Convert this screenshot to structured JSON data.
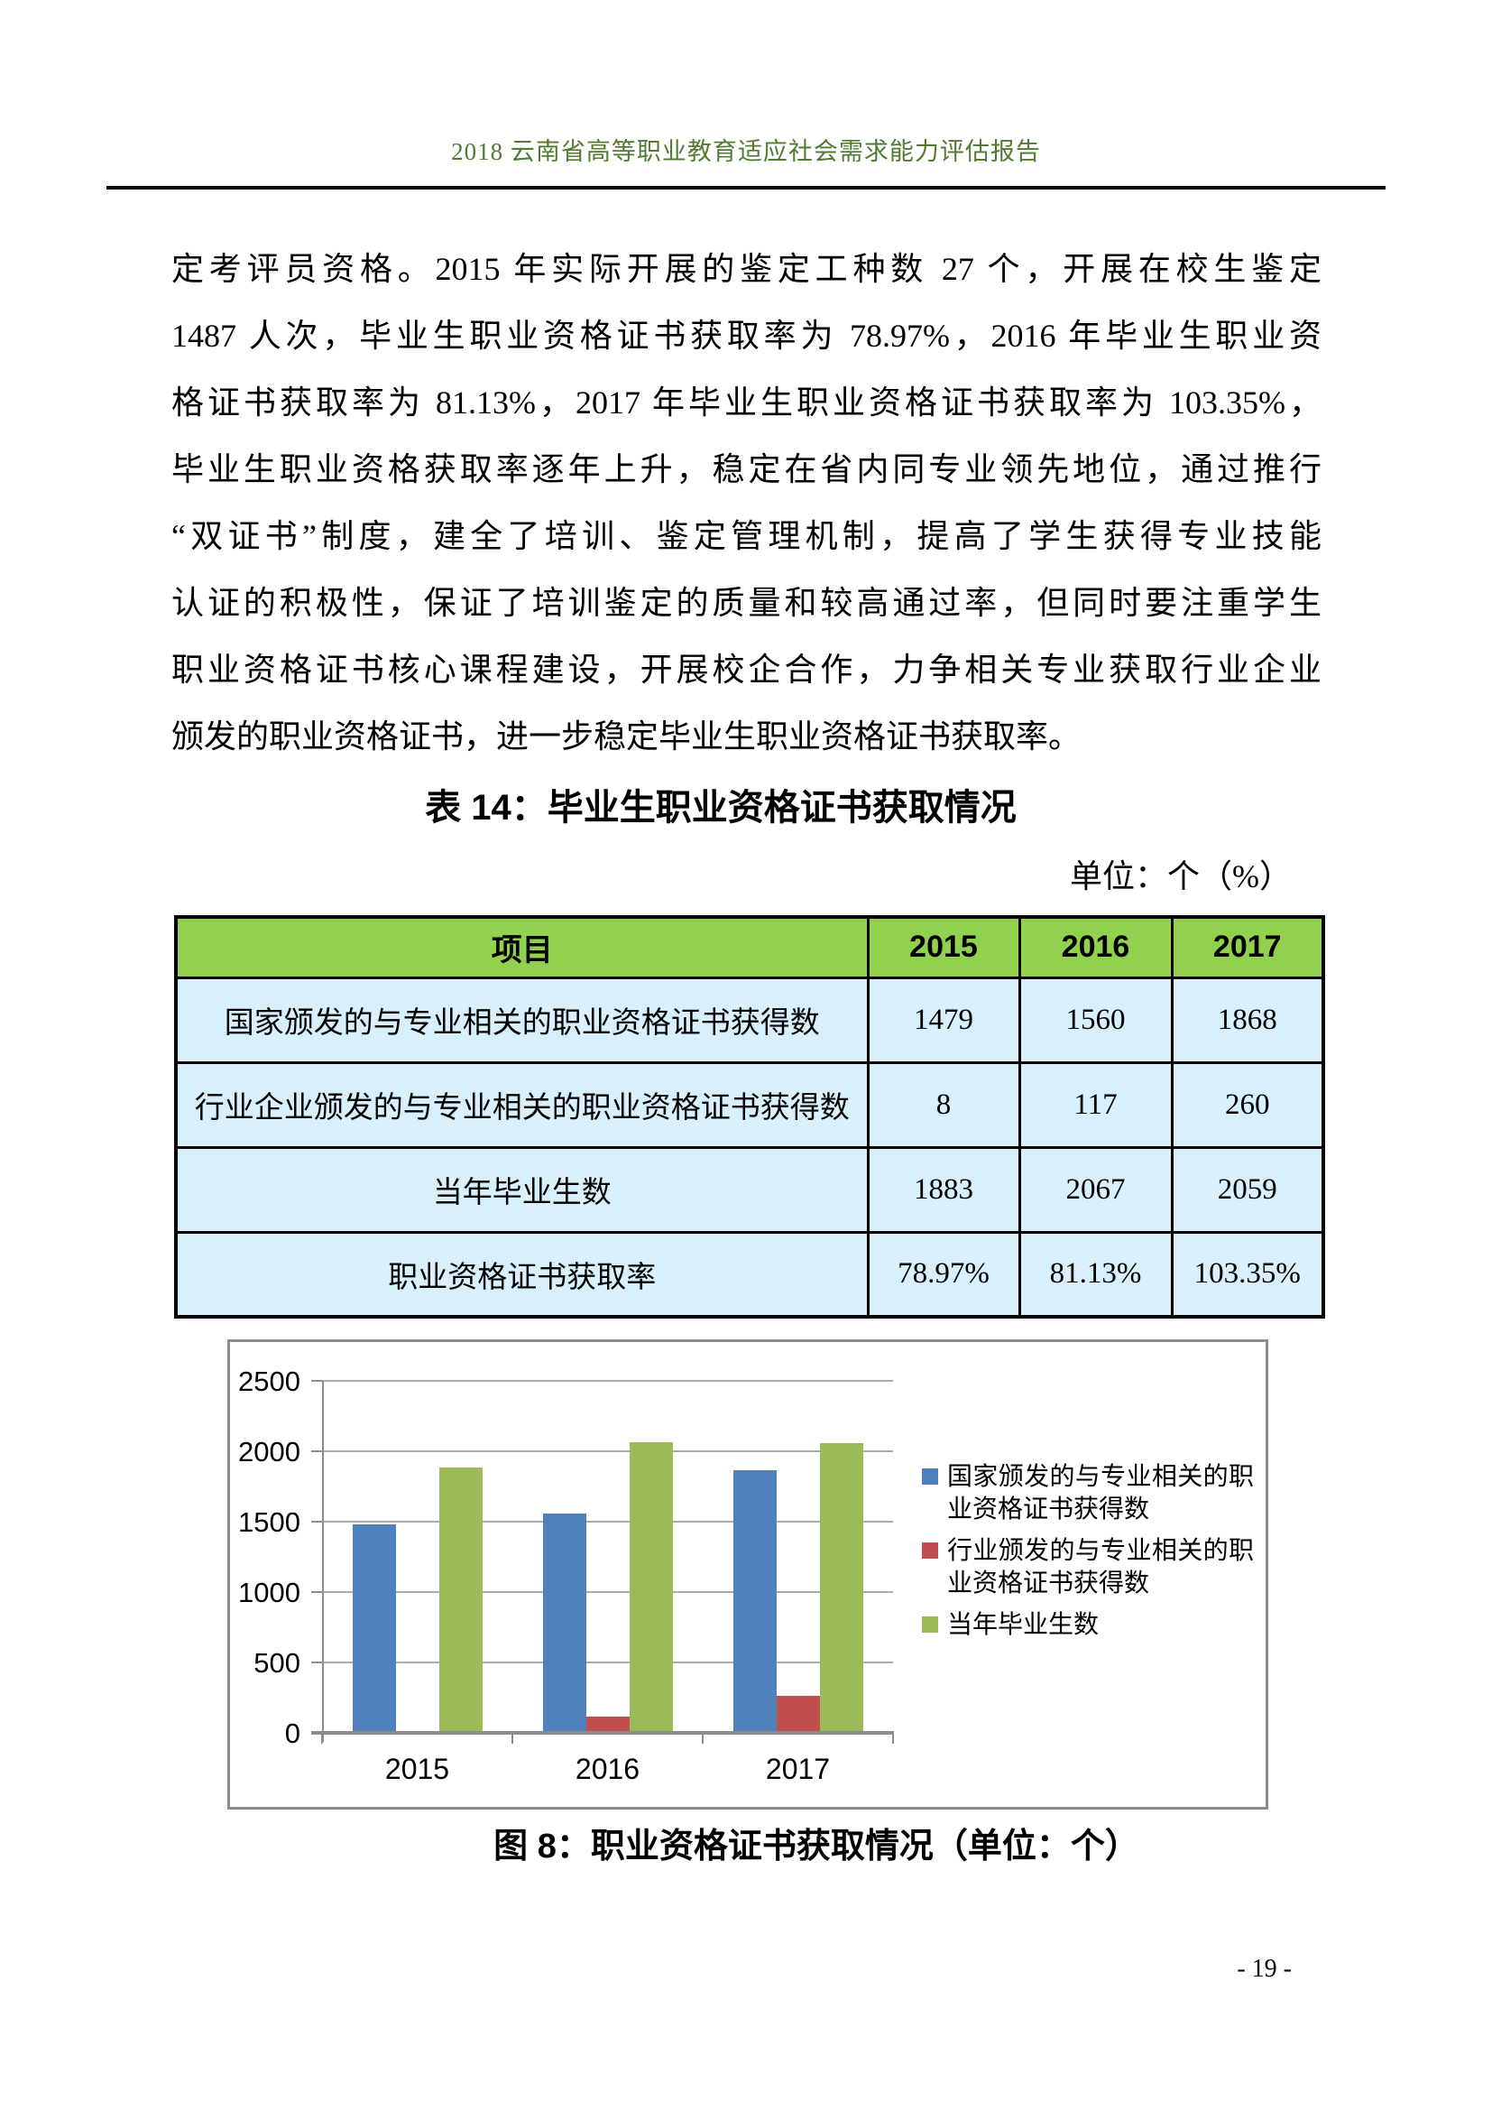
{
  "header": {
    "title": "2018 云南省高等职业教育适应社会需求能力评估报告"
  },
  "paragraph": {
    "lines": [
      "定考评员资格。2015 年实际开展的鉴定工种数 27 个，开展在校生鉴定",
      "1487 人次，毕业生职业资格证书获取率为 78.97%，2016 年毕业生职业资",
      "格证书获取率为 81.13%，2017 年毕业生职业资格证书获取率为 103.35%，",
      "毕业生职业资格获取率逐年上升，稳定在省内同专业领先地位，通过推行",
      "“双证书”制度，建全了培训、鉴定管理机制，提高了学生获得专业技能",
      "认证的积极性，保证了培训鉴定的质量和较高通过率，但同时要注重学生",
      "职业资格证书核心课程建设，开展校企合作，力争相关专业获取行业企业",
      "颁发的职业资格证书，进一步稳定毕业生职业资格证书获取率。"
    ]
  },
  "table": {
    "title": "表 14：毕业生职业资格证书获取情况",
    "unit_note": "单位：个（%）",
    "columns": [
      "项目",
      "2015",
      "2016",
      "2017"
    ],
    "rows": [
      {
        "label": "国家颁发的与专业相关的职业资格证书获得数",
        "values": [
          "1479",
          "1560",
          "1868"
        ]
      },
      {
        "label": "行业企业颁发的与专业相关的职业资格证书获得数",
        "values": [
          "8",
          "117",
          "260"
        ]
      },
      {
        "label": "当年毕业生数",
        "values": [
          "1883",
          "2067",
          "2059"
        ]
      },
      {
        "label": "职业资格证书获取率",
        "values": [
          "78.97%",
          "81.13%",
          "103.35%"
        ]
      }
    ],
    "header_bg": "#92D050",
    "row_bg": "#D7F0FB"
  },
  "figure": {
    "caption": "图 8：职业资格证书获取情况（单位：个）"
  },
  "chart_data": {
    "type": "bar",
    "categories": [
      "2015",
      "2016",
      "2017"
    ],
    "series": [
      {
        "name": "国家颁发的与专业相关的职业资格证书获得数",
        "color": "#4F81BD",
        "values": [
          1479,
          1560,
          1868
        ]
      },
      {
        "name": "行业颁发的与专业相关的职业资格证书获得数",
        "color": "#C0504D",
        "values": [
          8,
          117,
          260
        ]
      },
      {
        "name": "当年毕业生数",
        "color": "#9BBB59",
        "values": [
          1883,
          2067,
          2059
        ]
      }
    ],
    "title": "",
    "xlabel": "",
    "ylabel": "",
    "ylim": [
      0,
      2500
    ],
    "ytick_step": 500,
    "grid": true,
    "legend_position": "right"
  },
  "page": {
    "number": "- 19 -"
  }
}
